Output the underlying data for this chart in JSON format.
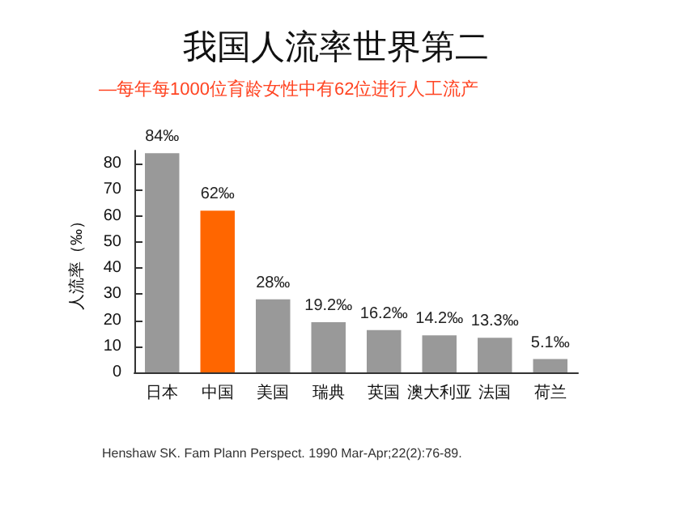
{
  "chart_data": {
    "type": "bar",
    "title": "我国人流率世界第二",
    "subtitle": "—每年每1000位育龄女性中有62位进行人工流产",
    "ylabel": "人流率（‰）",
    "categories": [
      "日本",
      "中国",
      "美国",
      "瑞典",
      "英国",
      "澳大利亚",
      "法国",
      "荷兰"
    ],
    "values": [
      84,
      62,
      28,
      19.2,
      16.2,
      14.2,
      13.3,
      5.1
    ],
    "colors": [
      "#999999",
      "#ff6600",
      "#999999",
      "#999999",
      "#999999",
      "#999999",
      "#999999",
      "#999999"
    ],
    "value_labels": [
      "84‰",
      "62‰",
      "28‰",
      "19.2‰",
      "16.2‰",
      "14.2‰",
      "13.3‰",
      "5.1‰"
    ],
    "ylim": [
      0,
      85
    ],
    "yticks": [
      0,
      10,
      20,
      30,
      40,
      50,
      60,
      70,
      80
    ],
    "grid": false,
    "annotations": [
      "Henshaw SK. Fam Plann Perspect. 1990 Mar-Apr;22(2):76-89."
    ]
  }
}
